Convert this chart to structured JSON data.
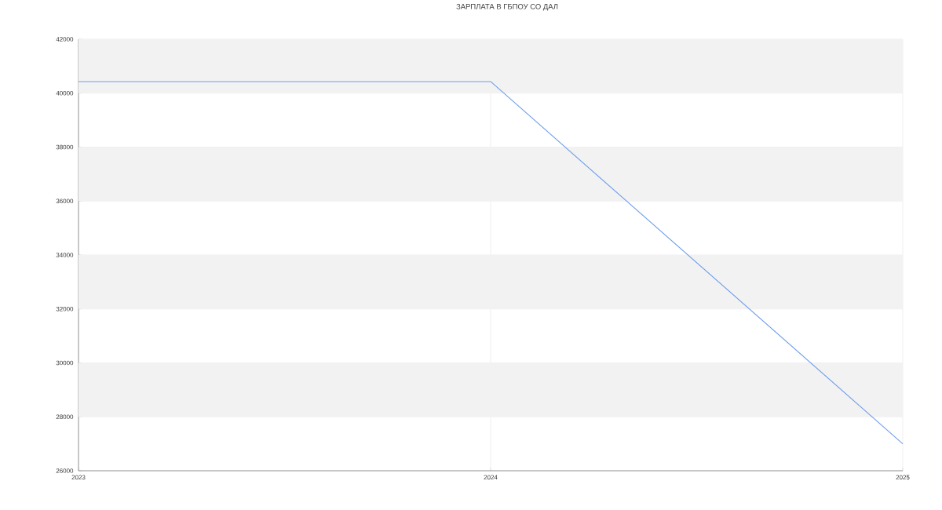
{
  "chart_data": {
    "type": "line",
    "title": "ЗАРПЛАТА В ГБПОУ СО ДАЛ",
    "x": [
      "2023",
      "2024",
      "2025"
    ],
    "series": [
      {
        "color": "#6d9eeb",
        "values": [
          40430,
          40430,
          27000
        ]
      }
    ],
    "xlim": [
      "2023",
      "2025"
    ],
    "xticks": [
      {
        "value": "2023",
        "label": "2023"
      },
      {
        "value": "2024",
        "label": "2024"
      },
      {
        "value": "2025",
        "label": "2025"
      }
    ],
    "ylim": [
      26000,
      42000
    ],
    "yticks": [
      26000,
      28000,
      30000,
      32000,
      34000,
      36000,
      38000,
      40000,
      42000
    ],
    "bands": [
      {
        "axis": "y",
        "from": 28000,
        "to": 30000,
        "color": "#f2f2f2"
      },
      {
        "axis": "y",
        "from": 32000,
        "to": 34000,
        "color": "#f2f2f2"
      },
      {
        "axis": "y",
        "from": 36000,
        "to": 38000,
        "color": "#f2f2f2"
      },
      {
        "axis": "y",
        "from": 40000,
        "to": 42000,
        "color": "#f2f2f2"
      }
    ],
    "grid": true,
    "marker": "none",
    "line_style": "solid"
  }
}
